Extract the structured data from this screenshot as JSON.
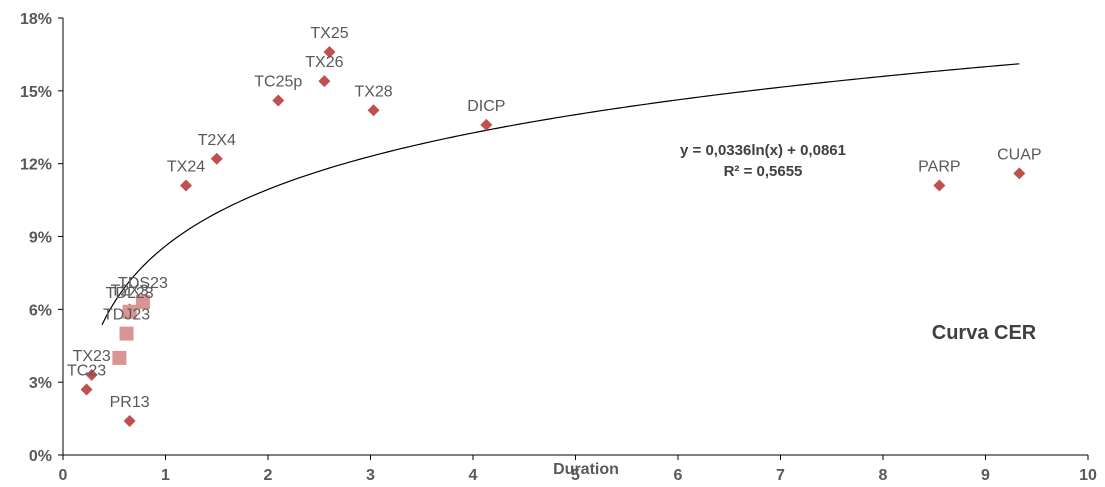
{
  "chart_data": {
    "type": "scatter",
    "xlabel": "Duration",
    "ylabel": "",
    "xlim": [
      0,
      10
    ],
    "ylim": [
      0,
      0.18
    ],
    "x_ticks": [
      "0",
      "1",
      "2",
      "3",
      "4",
      "5",
      "6",
      "7",
      "8",
      "9",
      "10"
    ],
    "y_ticks": [
      "0%",
      "3%",
      "6%",
      "9%",
      "12%",
      "15%",
      "18%"
    ],
    "grid": false,
    "series": [
      {
        "marker": "diamond",
        "color": "#C0504D",
        "points": [
          {
            "label": "TX25",
            "x": 2.6,
            "y": 0.166
          },
          {
            "label": "TX26",
            "x": 2.55,
            "y": 0.154
          },
          {
            "label": "TC25p",
            "x": 2.1,
            "y": 0.146
          },
          {
            "label": "TX28",
            "x": 3.03,
            "y": 0.142
          },
          {
            "label": "DICP",
            "x": 4.13,
            "y": 0.136
          },
          {
            "label": "T2X4",
            "x": 1.5,
            "y": 0.122
          },
          {
            "label": "TX24",
            "x": 1.2,
            "y": 0.111
          },
          {
            "label": "PARP",
            "x": 8.55,
            "y": 0.111
          },
          {
            "label": "CUAP",
            "x": 9.33,
            "y": 0.116
          },
          {
            "label": "T2X3",
            "x": 0.65,
            "y": 0.06
          },
          {
            "label": "TX23",
            "x": 0.28,
            "y": 0.033
          },
          {
            "label": "TC23",
            "x": 0.23,
            "y": 0.027
          },
          {
            "label": "PR13",
            "x": 0.65,
            "y": 0.014
          }
        ]
      },
      {
        "marker": "square",
        "color": "#D99594",
        "points": [
          {
            "label": "TDS23",
            "x": 0.78,
            "y": 0.063
          },
          {
            "label": "TDL23",
            "x": 0.65,
            "y": 0.059
          },
          {
            "label": "TDJ23",
            "x": 0.62,
            "y": 0.05
          },
          {
            "label": "",
            "x": 0.55,
            "y": 0.04
          }
        ]
      }
    ],
    "trendline": {
      "type": "logarithmic",
      "a": 0.0336,
      "b": 0.0861,
      "x_range": [
        0.38,
        9.33
      ],
      "equation": "y = 0,0336ln(x) + 0,0861",
      "r2": "R² = 0,5655"
    },
    "annotation": "Curva CER"
  }
}
